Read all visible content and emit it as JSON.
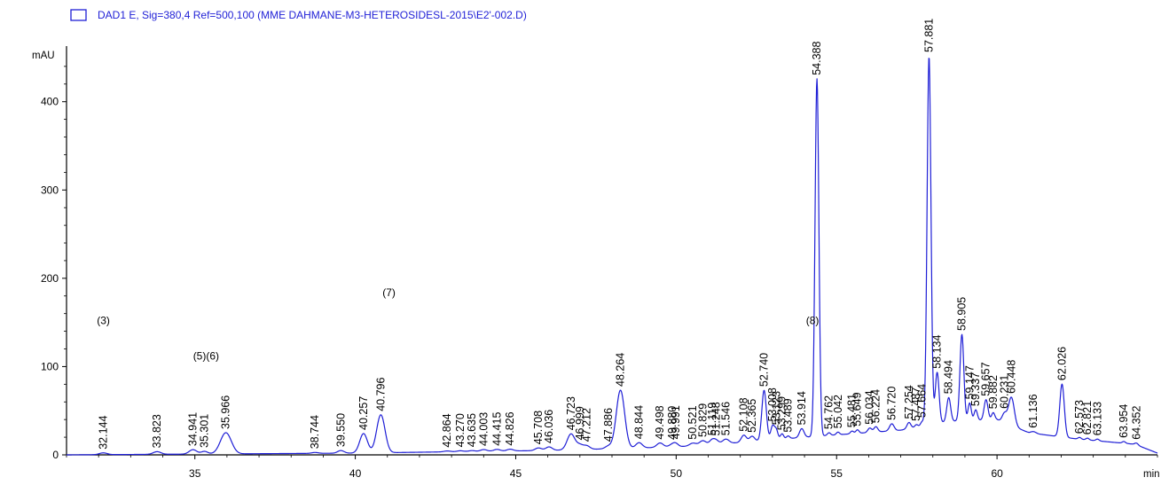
{
  "chart_data": {
    "type": "line",
    "legend": {
      "label": "DAD1 E, Sig=380,4 Ref=500,100 (MME DAHMANE-M3-HETEROSIDESL-2015\\E2'-002.D)",
      "placement": "top-left"
    },
    "ylabel": "mAU",
    "xlabel": "min",
    "xlim": [
      31.0,
      65.0
    ],
    "ylim": [
      -5,
      470
    ],
    "x_ticks": [
      35,
      40,
      45,
      50,
      55,
      60
    ],
    "y_ticks": [
      0,
      100,
      200,
      300,
      400
    ],
    "grid": false,
    "baseline": [
      {
        "x": 31.0,
        "y": 0
      },
      {
        "x": 40.0,
        "y": 2
      },
      {
        "x": 46.0,
        "y": 5
      },
      {
        "x": 50.0,
        "y": 9
      },
      {
        "x": 52.0,
        "y": 14
      },
      {
        "x": 54.0,
        "y": 20
      },
      {
        "x": 57.0,
        "y": 28
      },
      {
        "x": 58.5,
        "y": 38
      },
      {
        "x": 60.0,
        "y": 40
      },
      {
        "x": 61.0,
        "y": 25
      },
      {
        "x": 62.5,
        "y": 18
      },
      {
        "x": 64.3,
        "y": 12
      },
      {
        "x": 65.0,
        "y": 2
      }
    ],
    "peaks": [
      {
        "rt": "32.144",
        "height": 2,
        "width": 0.12
      },
      {
        "rt": "33.823",
        "height": 3,
        "width": 0.12
      },
      {
        "rt": "34.941",
        "height": 5,
        "width": 0.12
      },
      {
        "rt": "35.301",
        "height": 3,
        "width": 0.1
      },
      {
        "rt": "35.966",
        "height": 24,
        "width": 0.17
      },
      {
        "rt": "38.744",
        "height": 1,
        "width": 0.1
      },
      {
        "rt": "39.550",
        "height": 3,
        "width": 0.1
      },
      {
        "rt": "40.257",
        "height": 22,
        "width": 0.12
      },
      {
        "rt": "40.796",
        "height": 43,
        "width": 0.13
      },
      {
        "rt": "42.864",
        "height": 1,
        "width": 0.1
      },
      {
        "rt": "43.270",
        "height": 1,
        "width": 0.1
      },
      {
        "rt": "43.635",
        "height": 1,
        "width": 0.1
      },
      {
        "rt": "44.003",
        "height": 2,
        "width": 0.1
      },
      {
        "rt": "44.415",
        "height": 2,
        "width": 0.1
      },
      {
        "rt": "44.826",
        "height": 2,
        "width": 0.1
      },
      {
        "rt": "45.708",
        "height": 3,
        "width": 0.1
      },
      {
        "rt": "46.036",
        "height": 4,
        "width": 0.1
      },
      {
        "rt": "46.723",
        "height": 18,
        "width": 0.12
      },
      {
        "rt": "46.999",
        "height": 5,
        "width": 0.1
      },
      {
        "rt": "47.212",
        "height": 4,
        "width": 0.1
      },
      {
        "rt": "47.886",
        "height": 3,
        "width": 0.1
      },
      {
        "rt": "48.264",
        "height": 66,
        "width": 0.13
      },
      {
        "rt": "48.844",
        "height": 6,
        "width": 0.1
      },
      {
        "rt": "49.498",
        "height": 5,
        "width": 0.1
      },
      {
        "rt": "49.880",
        "height": 3,
        "width": 0.1
      },
      {
        "rt": "49.991",
        "height": 3,
        "width": 0.08
      },
      {
        "rt": "50.521",
        "height": 3,
        "width": 0.1
      },
      {
        "rt": "50.829",
        "height": 5,
        "width": 0.1
      },
      {
        "rt": "51.119",
        "height": 5,
        "width": 0.08
      },
      {
        "rt": "51.248",
        "height": 4,
        "width": 0.08
      },
      {
        "rt": "51.546",
        "height": 5,
        "width": 0.1
      },
      {
        "rt": "52.108",
        "height": 8,
        "width": 0.08
      },
      {
        "rt": "52.365",
        "height": 6,
        "width": 0.08
      },
      {
        "rt": "52.740",
        "height": 57,
        "width": 0.07
      },
      {
        "rt": "53.008",
        "height": 16,
        "width": 0.06
      },
      {
        "rt": "53.123",
        "height": 10,
        "width": 0.05
      },
      {
        "rt": "53.299",
        "height": 6,
        "width": 0.05
      },
      {
        "rt": "53.489",
        "height": 3,
        "width": 0.05
      },
      {
        "rt": "53.914",
        "height": 10,
        "width": 0.07
      },
      {
        "rt": "54.388",
        "height": 405,
        "width": 0.06
      },
      {
        "rt": "54.762",
        "height": 3,
        "width": 0.05
      },
      {
        "rt": "55.042",
        "height": 3,
        "width": 0.05
      },
      {
        "rt": "55.481",
        "height": 3,
        "width": 0.05
      },
      {
        "rt": "55.649",
        "height": 4,
        "width": 0.05
      },
      {
        "rt": "56.034",
        "height": 5,
        "width": 0.06
      },
      {
        "rt": "56.224",
        "height": 6,
        "width": 0.06
      },
      {
        "rt": "56.720",
        "height": 8,
        "width": 0.07
      },
      {
        "rt": "57.254",
        "height": 7,
        "width": 0.06
      },
      {
        "rt": "57.487",
        "height": 3,
        "width": 0.05
      },
      {
        "rt": "57.664",
        "height": 5,
        "width": 0.05
      },
      {
        "rt": "57.881",
        "height": 418,
        "width": 0.06
      },
      {
        "rt": "58.134",
        "height": 58,
        "width": 0.06
      },
      {
        "rt": "58.494",
        "height": 27,
        "width": 0.06
      },
      {
        "rt": "58.905",
        "height": 98,
        "width": 0.06
      },
      {
        "rt": "59.147",
        "height": 20,
        "width": 0.05
      },
      {
        "rt": "59.337",
        "height": 12,
        "width": 0.05
      },
      {
        "rt": "59.657",
        "height": 23,
        "width": 0.06
      },
      {
        "rt": "59.882",
        "height": 8,
        "width": 0.05
      },
      {
        "rt": "60.231",
        "height": 10,
        "width": 0.07
      },
      {
        "rt": "60.448",
        "height": 32,
        "width": 0.09
      },
      {
        "rt": "61.136",
        "height": 2,
        "width": 0.08
      },
      {
        "rt": "62.026",
        "height": 60,
        "width": 0.07
      },
      {
        "rt": "62.573",
        "height": 2,
        "width": 0.05
      },
      {
        "rt": "62.821",
        "height": 2,
        "width": 0.05
      },
      {
        "rt": "63.133",
        "height": 2,
        "width": 0.05
      },
      {
        "rt": "63.954",
        "height": 2,
        "width": 0.05
      },
      {
        "rt": "64.352",
        "height": 2,
        "width": 0.05
      }
    ],
    "annotations": [
      {
        "text": "(3)",
        "x": 32.15,
        "y": 148
      },
      {
        "text": "(5)(6)",
        "x": 35.35,
        "y": 108
      },
      {
        "text": "(7)",
        "x": 41.05,
        "y": 180
      },
      {
        "text": "(8)",
        "x": 54.25,
        "y": 148
      }
    ],
    "colors": {
      "trace": "#1f1fd6",
      "legend_text": "#1f1fd6",
      "legend_box": "#1f1fd6",
      "axis": "#000000",
      "labels": "#000000"
    }
  }
}
